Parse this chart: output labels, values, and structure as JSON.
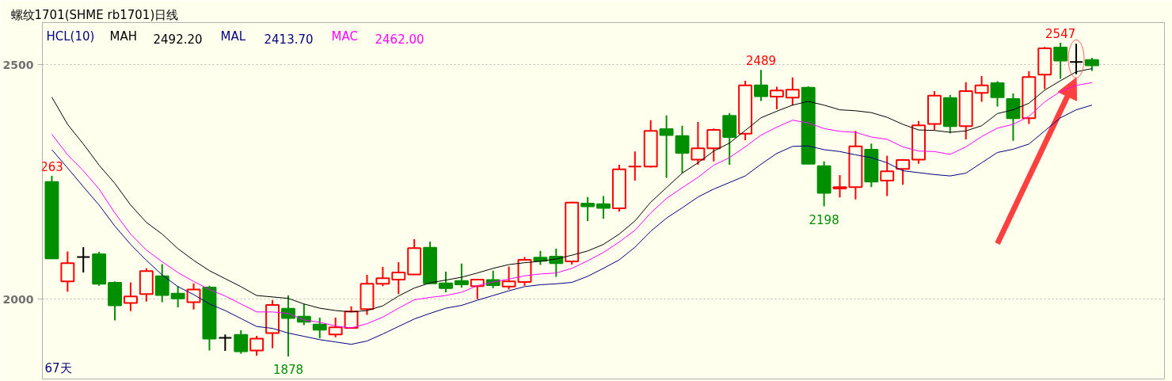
{
  "chart_data": {
    "type": "candlestick",
    "title": "螺纹1701(SHME rb1701)日线",
    "legend_title": "HCL(10)",
    "legend": "top left",
    "categories": [
      null,
      null,
      null,
      null,
      null,
      null,
      null,
      null,
      null,
      null,
      null,
      null,
      null,
      null,
      null,
      null,
      null,
      null,
      null,
      null,
      null,
      null,
      null,
      null,
      null,
      null,
      null,
      null,
      null,
      null,
      null,
      null,
      null,
      null,
      null,
      null,
      null,
      null,
      null,
      null,
      null,
      null,
      null,
      null,
      null,
      null,
      null,
      null,
      null,
      null,
      null,
      null,
      null,
      null,
      null,
      null,
      null,
      null,
      null,
      null,
      null,
      null,
      null,
      null,
      null,
      null,
      null
    ],
    "ohlc": [
      [
        2250,
        2263,
        2087,
        2087
      ],
      [
        2038,
        2102,
        2016,
        2077
      ],
      [
        2090,
        2111,
        2057,
        2090
      ],
      [
        2096,
        2101,
        2029,
        2033
      ],
      [
        2035,
        2038,
        1955,
        1987
      ],
      [
        1992,
        2036,
        1975,
        2006
      ],
      [
        2011,
        2066,
        1995,
        2060
      ],
      [
        2049,
        2075,
        1994,
        2009
      ],
      [
        2012,
        2028,
        1983,
        2002
      ],
      [
        1994,
        2034,
        1978,
        2021
      ],
      [
        2025,
        2029,
        1891,
        1916
      ],
      [
        1918,
        1925,
        1890,
        1918
      ],
      [
        1924,
        1934,
        1884,
        1889
      ],
      [
        1891,
        1922,
        1880,
        1916
      ],
      [
        1928,
        1998,
        1896,
        1988
      ],
      [
        1980,
        2008,
        1878,
        1960
      ],
      [
        1963,
        1990,
        1945,
        1952
      ],
      [
        1946,
        1961,
        1917,
        1935
      ],
      [
        1925,
        1961,
        1919,
        1940
      ],
      [
        1939,
        1985,
        1939,
        1974
      ],
      [
        1979,
        2052,
        1967,
        2033
      ],
      [
        2033,
        2069,
        2028,
        2045
      ],
      [
        2042,
        2079,
        2011,
        2057
      ],
      [
        2053,
        2128,
        2052,
        2109
      ],
      [
        2110,
        2123,
        2034,
        2034
      ],
      [
        2034,
        2059,
        2015,
        2024
      ],
      [
        2039,
        2076,
        2025,
        2032
      ],
      [
        2028,
        2043,
        2000,
        2042
      ],
      [
        2041,
        2061,
        2024,
        2030
      ],
      [
        2027,
        2070,
        2021,
        2038
      ],
      [
        2037,
        2090,
        2029,
        2084
      ],
      [
        2089,
        2103,
        2073,
        2082
      ],
      [
        2091,
        2108,
        2048,
        2077
      ],
      [
        2081,
        2208,
        2074,
        2206
      ],
      [
        2204,
        2218,
        2167,
        2198
      ],
      [
        2203,
        2220,
        2172,
        2195
      ],
      [
        2194,
        2287,
        2187,
        2277
      ],
      [
        2283,
        2315,
        2253,
        2283
      ],
      [
        2283,
        2382,
        2281,
        2359
      ],
      [
        2363,
        2392,
        2259,
        2350
      ],
      [
        2348,
        2370,
        2269,
        2312
      ],
      [
        2298,
        2378,
        2287,
        2322
      ],
      [
        2322,
        2364,
        2294,
        2361
      ],
      [
        2391,
        2397,
        2287,
        2346
      ],
      [
        2353,
        2466,
        2339,
        2456
      ],
      [
        2456,
        2489,
        2423,
        2433
      ],
      [
        2432,
        2453,
        2405,
        2445
      ],
      [
        2430,
        2473,
        2413,
        2447
      ],
      [
        2451,
        2454,
        2289,
        2289
      ],
      [
        2284,
        2294,
        2198,
        2227
      ],
      [
        2236,
        2265,
        2217,
        2239
      ],
      [
        2239,
        2359,
        2213,
        2326
      ],
      [
        2319,
        2332,
        2239,
        2251
      ],
      [
        2253,
        2306,
        2220,
        2273
      ],
      [
        2278,
        2299,
        2244,
        2297
      ],
      [
        2298,
        2380,
        2289,
        2371
      ],
      [
        2374,
        2444,
        2361,
        2434
      ],
      [
        2429,
        2436,
        2354,
        2369
      ],
      [
        2369,
        2463,
        2341,
        2444
      ],
      [
        2440,
        2476,
        2421,
        2456
      ],
      [
        2461,
        2465,
        2411,
        2431
      ],
      [
        2427,
        2439,
        2338,
        2386
      ],
      [
        2386,
        2486,
        2374,
        2474
      ],
      [
        2479,
        2538,
        2448,
        2535
      ],
      [
        2537,
        2547,
        2470,
        2509
      ],
      [
        2506,
        2545,
        2480,
        2506
      ],
      [
        2510,
        2515,
        2487,
        2499
      ]
    ],
    "colors": [
      "#008f00",
      "#ff0000",
      "#000000",
      "#008f00",
      "#008f00",
      "#ff0000",
      "#ff0000",
      "#008f00",
      "#008f00",
      "#ff0000",
      "#008f00",
      "#000000",
      "#008f00",
      "#ff0000",
      "#ff0000",
      "#008f00",
      "#008f00",
      "#008f00",
      "#ff0000",
      "#ff0000",
      "#ff0000",
      "#ff0000",
      "#ff0000",
      "#ff0000",
      "#008f00",
      "#008f00",
      "#008f00",
      "#ff0000",
      "#008f00",
      "#ff0000",
      "#ff0000",
      "#008f00",
      "#008f00",
      "#ff0000",
      "#008f00",
      "#008f00",
      "#ff0000",
      "#ff0000",
      "#ff0000",
      "#008f00",
      "#008f00",
      "#ff0000",
      "#ff0000",
      "#008f00",
      "#ff0000",
      "#008f00",
      "#ff0000",
      "#ff0000",
      "#008f00",
      "#008f00",
      "#ff0000",
      "#ff0000",
      "#008f00",
      "#ff0000",
      "#ff0000",
      "#ff0000",
      "#ff0000",
      "#008f00",
      "#ff0000",
      "#ff0000",
      "#008f00",
      "#008f00",
      "#ff0000",
      "#ff0000",
      "#008f00",
      "#000000",
      "#008f00"
    ],
    "series": [
      {
        "name": "MAH",
        "type": "line",
        "color": "#000000",
        "values": [
          2431,
          2373,
          2331,
          2286,
          2247,
          2201,
          2164,
          2139,
          2108,
          2083,
          2061,
          2044,
          2027,
          2008,
          2005,
          2002,
          1990,
          1981,
          1976,
          1973,
          1976,
          1986,
          2007,
          2024,
          2035,
          2041,
          2047,
          2056,
          2066,
          2074,
          2078,
          2081,
          2086,
          2094,
          2103,
          2117,
          2139,
          2167,
          2207,
          2238,
          2269,
          2291,
          2316,
          2333,
          2360,
          2387,
          2401,
          2414,
          2422,
          2414,
          2404,
          2402,
          2398,
          2388,
          2373,
          2361,
          2360,
          2356,
          2359,
          2370,
          2396,
          2404,
          2418,
          2446,
          2466,
          2485,
          2492
        ]
      },
      {
        "name": "MAL",
        "type": "line",
        "color": "#000080",
        "values": [
          2319,
          2280,
          2240,
          2201,
          2156,
          2117,
          2083,
          2052,
          2027,
          2010,
          1990,
          1976,
          1959,
          1942,
          1938,
          1928,
          1921,
          1914,
          1909,
          1904,
          1911,
          1926,
          1942,
          1958,
          1970,
          1981,
          1987,
          1998,
          2008,
          2018,
          2027,
          2031,
          2033,
          2036,
          2049,
          2066,
          2084,
          2111,
          2145,
          2173,
          2195,
          2218,
          2235,
          2249,
          2263,
          2288,
          2311,
          2326,
          2327,
          2319,
          2315,
          2308,
          2302,
          2291,
          2274,
          2270,
          2266,
          2263,
          2269,
          2291,
          2313,
          2320,
          2331,
          2359,
          2387,
          2404,
          2414
        ]
      },
      {
        "name": "MAC",
        "type": "line",
        "color": "#ff00ff",
        "values": [
          2352,
          2308,
          2274,
          2235,
          2184,
          2139,
          2105,
          2080,
          2057,
          2038,
          2021,
          2007,
          1990,
          1973,
          1973,
          1970,
          1956,
          1951,
          1943,
          1939,
          1948,
          1962,
          1981,
          1999,
          2004,
          2008,
          2015,
          2029,
          2037,
          2043,
          2050,
          2054,
          2056,
          2066,
          2082,
          2100,
          2122,
          2147,
          2184,
          2215,
          2238,
          2260,
          2286,
          2302,
          2325,
          2350,
          2367,
          2382,
          2376,
          2364,
          2358,
          2356,
          2346,
          2341,
          2325,
          2316,
          2315,
          2309,
          2325,
          2347,
          2365,
          2373,
          2390,
          2421,
          2443,
          2456,
          2462
        ]
      }
    ],
    "ylim": [
      1830,
      2590
    ],
    "yticks": [
      2000,
      2500
    ],
    "grid": "y",
    "annotations": [
      "2492.20",
      "2413.70",
      "2462.00",
      "67天",
      {
        "text": "263",
        "y": 2263
      },
      {
        "text": "1878",
        "y": 1878
      },
      {
        "text": "2489",
        "y": 2489
      },
      {
        "text": "2198",
        "y": 2198
      },
      {
        "text": "2547",
        "y": 2547
      }
    ]
  }
}
